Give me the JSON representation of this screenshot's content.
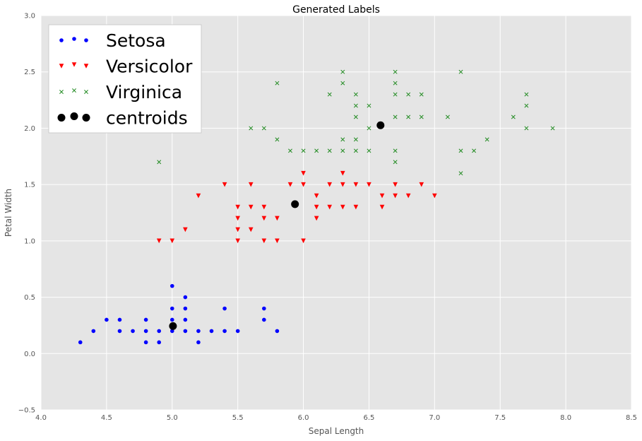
{
  "chart_data": {
    "type": "scatter",
    "title": "Generated Labels",
    "xlabel": "Sepal Length",
    "ylabel": "Petal Width",
    "xlim": [
      4.0,
      8.5
    ],
    "ylim": [
      -0.5,
      3.0
    ],
    "xticks": [
      "4.0",
      "4.5",
      "5.0",
      "5.5",
      "6.0",
      "6.5",
      "7.0",
      "7.5",
      "8.0",
      "8.5"
    ],
    "yticks": [
      "−0.5",
      "0.0",
      "0.5",
      "1.0",
      "1.5",
      "2.0",
      "2.5",
      "3.0"
    ],
    "grid": true,
    "legend_position": "upper-left",
    "background": "#e5e5e5",
    "series": [
      {
        "name": "Setosa",
        "marker": "circle",
        "color": "#0000ff",
        "points": [
          [
            4.3,
            0.1
          ],
          [
            4.4,
            0.2
          ],
          [
            4.5,
            0.3
          ],
          [
            4.6,
            0.2
          ],
          [
            4.6,
            0.3
          ],
          [
            4.7,
            0.2
          ],
          [
            4.8,
            0.1
          ],
          [
            4.8,
            0.2
          ],
          [
            4.8,
            0.3
          ],
          [
            4.9,
            0.1
          ],
          [
            4.9,
            0.2
          ],
          [
            5.0,
            0.2
          ],
          [
            5.0,
            0.3
          ],
          [
            5.0,
            0.4
          ],
          [
            5.0,
            0.6
          ],
          [
            5.1,
            0.2
          ],
          [
            5.1,
            0.3
          ],
          [
            5.1,
            0.4
          ],
          [
            5.1,
            0.5
          ],
          [
            5.2,
            0.1
          ],
          [
            5.2,
            0.2
          ],
          [
            5.3,
            0.2
          ],
          [
            5.4,
            0.2
          ],
          [
            5.4,
            0.4
          ],
          [
            5.5,
            0.2
          ],
          [
            5.7,
            0.3
          ],
          [
            5.7,
            0.4
          ],
          [
            5.8,
            0.2
          ]
        ]
      },
      {
        "name": "Versicolor",
        "marker": "triangle-down",
        "color": "#ff0000",
        "points": [
          [
            4.9,
            1.0
          ],
          [
            5.0,
            1.0
          ],
          [
            5.1,
            1.1
          ],
          [
            5.2,
            1.4
          ],
          [
            5.4,
            1.5
          ],
          [
            5.5,
            1.0
          ],
          [
            5.5,
            1.1
          ],
          [
            5.5,
            1.2
          ],
          [
            5.5,
            1.3
          ],
          [
            5.6,
            1.1
          ],
          [
            5.6,
            1.3
          ],
          [
            5.6,
            1.5
          ],
          [
            5.7,
            1.0
          ],
          [
            5.7,
            1.2
          ],
          [
            5.7,
            1.3
          ],
          [
            5.8,
            1.0
          ],
          [
            5.8,
            1.2
          ],
          [
            5.9,
            1.5
          ],
          [
            6.0,
            1.0
          ],
          [
            6.0,
            1.5
          ],
          [
            6.0,
            1.6
          ],
          [
            6.1,
            1.2
          ],
          [
            6.1,
            1.3
          ],
          [
            6.1,
            1.4
          ],
          [
            6.2,
            1.3
          ],
          [
            6.2,
            1.5
          ],
          [
            6.3,
            1.3
          ],
          [
            6.3,
            1.5
          ],
          [
            6.3,
            1.6
          ],
          [
            6.4,
            1.3
          ],
          [
            6.4,
            1.5
          ],
          [
            6.5,
            1.5
          ],
          [
            6.6,
            1.3
          ],
          [
            6.6,
            1.4
          ],
          [
            6.7,
            1.4
          ],
          [
            6.7,
            1.5
          ],
          [
            6.8,
            1.4
          ],
          [
            6.9,
            1.5
          ],
          [
            7.0,
            1.4
          ]
        ]
      },
      {
        "name": "Virginica",
        "marker": "x",
        "color": "#228b22",
        "points": [
          [
            4.9,
            1.7
          ],
          [
            5.6,
            2.0
          ],
          [
            5.7,
            2.0
          ],
          [
            5.8,
            1.9
          ],
          [
            5.8,
            2.4
          ],
          [
            5.9,
            1.8
          ],
          [
            6.0,
            1.8
          ],
          [
            6.1,
            1.8
          ],
          [
            6.2,
            1.8
          ],
          [
            6.2,
            2.3
          ],
          [
            6.3,
            1.8
          ],
          [
            6.3,
            1.9
          ],
          [
            6.3,
            2.4
          ],
          [
            6.3,
            2.5
          ],
          [
            6.4,
            1.8
          ],
          [
            6.4,
            1.9
          ],
          [
            6.4,
            2.1
          ],
          [
            6.4,
            2.2
          ],
          [
            6.4,
            2.3
          ],
          [
            6.5,
            1.8
          ],
          [
            6.5,
            2.0
          ],
          [
            6.5,
            2.2
          ],
          [
            6.7,
            1.7
          ],
          [
            6.7,
            1.8
          ],
          [
            6.7,
            2.1
          ],
          [
            6.7,
            2.3
          ],
          [
            6.7,
            2.4
          ],
          [
            6.7,
            2.5
          ],
          [
            6.8,
            2.1
          ],
          [
            6.8,
            2.3
          ],
          [
            6.9,
            2.1
          ],
          [
            6.9,
            2.3
          ],
          [
            7.1,
            2.1
          ],
          [
            7.2,
            1.6
          ],
          [
            7.2,
            1.8
          ],
          [
            7.2,
            2.5
          ],
          [
            7.3,
            1.8
          ],
          [
            7.4,
            1.9
          ],
          [
            7.6,
            2.1
          ],
          [
            7.7,
            2.0
          ],
          [
            7.7,
            2.2
          ],
          [
            7.7,
            2.3
          ],
          [
            7.9,
            2.0
          ]
        ]
      },
      {
        "name": "centroids",
        "marker": "circle-large",
        "color": "#000000",
        "points": [
          [
            5.006,
            0.244
          ],
          [
            5.936,
            1.326
          ],
          [
            6.588,
            2.026
          ]
        ]
      }
    ]
  }
}
